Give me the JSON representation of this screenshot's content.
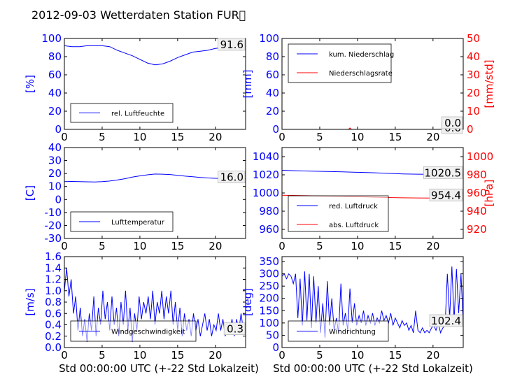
{
  "title": "2012-09-03 Wetterdaten Station FUR\u0000",
  "xlabel": "Std 00:00:00 UTC (+-22 Std Lokalzeit)",
  "colors": {
    "left_axis": "#0000ff",
    "right_axis": "#ff0000",
    "series_blue": "#0000ff",
    "series_red": "#ff0000"
  },
  "chart_data": [
    {
      "type": "line",
      "id": "humidity",
      "ylabel": "[%]",
      "ylim": [
        0,
        100
      ],
      "yticks": [
        0,
        20,
        40,
        60,
        80,
        100
      ],
      "xlim": [
        0,
        24
      ],
      "xticks": [
        0,
        5,
        10,
        15,
        20
      ],
      "legend": "rel. Luftfeuchte",
      "last_value": "91.6",
      "series": [
        {
          "name": "rel. Luftfeuchte",
          "axis": "left",
          "color": "#0000ff",
          "x": [
            0,
            1,
            2,
            3,
            4,
            5,
            6,
            7,
            8,
            9,
            10,
            11,
            12,
            13,
            14,
            15,
            16,
            17,
            18,
            19,
            20,
            21,
            22,
            23,
            24
          ],
          "y": [
            92,
            91,
            91,
            92,
            92,
            92,
            91,
            87,
            84,
            81,
            77,
            73,
            71,
            72,
            75,
            79,
            82,
            85,
            86,
            87,
            89,
            90,
            90,
            91,
            91.6
          ]
        }
      ]
    },
    {
      "type": "line",
      "id": "precipitation",
      "ylabel": "[mm]",
      "ylim": [
        0,
        100
      ],
      "yticks": [
        0,
        20,
        40,
        60,
        80,
        100
      ],
      "ylabel_right": "[mm/std]",
      "ylim_right": [
        0,
        50
      ],
      "yticks_right": [
        0,
        10,
        20,
        30,
        40,
        50
      ],
      "xlim": [
        0,
        24
      ],
      "xticks": [
        0,
        5,
        10,
        15,
        20
      ],
      "legend": [
        "kum. Niederschlag",
        "Niederschlagsrate"
      ],
      "last_value": "0.0",
      "last_value_right": "0.0",
      "series": [
        {
          "name": "kum. Niederschlag",
          "axis": "left",
          "color": "#0000ff",
          "x": [
            0,
            24
          ],
          "y": [
            0,
            0
          ]
        },
        {
          "name": "Niederschlagsrate",
          "axis": "right",
          "color": "#ff0000",
          "x": [
            0,
            8.8,
            9.0,
            9.2,
            24
          ],
          "y": [
            0,
            0,
            0.8,
            0,
            0
          ]
        }
      ]
    },
    {
      "type": "line",
      "id": "temperature",
      "ylabel": "[C]",
      "ylim": [
        -30,
        40
      ],
      "yticks": [
        -30,
        -20,
        -10,
        0,
        10,
        20,
        30,
        40
      ],
      "xlim": [
        0,
        24
      ],
      "xticks": [
        0,
        5,
        10,
        15,
        20
      ],
      "legend": "Lufttemperatur",
      "last_value": "16.0",
      "series": [
        {
          "name": "Lufttemperatur",
          "axis": "left",
          "color": "#0000ff",
          "x": [
            0,
            1,
            2,
            3,
            4,
            5,
            6,
            7,
            8,
            9,
            10,
            11,
            12,
            13,
            14,
            15,
            16,
            17,
            18,
            19,
            20,
            21,
            22,
            23,
            24
          ],
          "y": [
            13.8,
            13.9,
            13.8,
            13.6,
            13.5,
            13.8,
            14.2,
            15.0,
            16.0,
            17.2,
            18.2,
            19.0,
            19.6,
            19.5,
            19.2,
            18.6,
            18.0,
            17.5,
            17.0,
            16.6,
            16.3,
            16.2,
            16.1,
            16.0,
            16.0
          ]
        }
      ]
    },
    {
      "type": "line",
      "id": "pressure",
      "ylim": [
        950,
        1050
      ],
      "yticks": [
        960,
        980,
        1000,
        1020,
        1040
      ],
      "ylabel_right": "[hPa]",
      "ylim_right": [
        910,
        1010
      ],
      "yticks_right": [
        920,
        940,
        960,
        980,
        1000
      ],
      "xlim": [
        0,
        24
      ],
      "xticks": [
        0,
        5,
        10,
        15,
        20
      ],
      "legend": [
        "red. Luftdruck",
        "abs. Luftdruck"
      ],
      "last_value": "1020.5",
      "last_value_right": "954.4",
      "series": [
        {
          "name": "red. Luftdruck",
          "axis": "left",
          "color": "#0000ff",
          "x": [
            0,
            2,
            4,
            6,
            8,
            10,
            12,
            14,
            16,
            18,
            20,
            22,
            24
          ],
          "y": [
            1025,
            1024.5,
            1024,
            1023.6,
            1023.2,
            1022.8,
            1022.3,
            1021.6,
            1021.0,
            1020.7,
            1020.6,
            1020.5,
            1020.5
          ]
        },
        {
          "name": "abs. Luftdruck",
          "axis": "right",
          "color": "#ff0000",
          "x": [
            0,
            2,
            4,
            6,
            8,
            10,
            12,
            14,
            16,
            18,
            20,
            22,
            24
          ],
          "y": [
            957.5,
            957.2,
            956.9,
            956.6,
            956.3,
            955.9,
            955.5,
            955.0,
            954.7,
            954.5,
            954.4,
            954.4,
            954.4
          ]
        }
      ]
    },
    {
      "type": "line",
      "id": "wind_speed",
      "ylabel": "[m/s]",
      "ylim": [
        0,
        1.6
      ],
      "yticks": [
        0.0,
        0.2,
        0.4,
        0.6,
        0.8,
        1.0,
        1.2,
        1.4,
        1.6
      ],
      "xlim": [
        0,
        24
      ],
      "xticks": [
        0,
        5,
        10,
        15,
        20
      ],
      "legend": "Windgeschwindigkeit",
      "last_value": "0.3",
      "series": [
        {
          "name": "Windgeschwindigkeit",
          "axis": "left",
          "color": "#0000ff",
          "x": [
            0,
            0.3,
            0.6,
            0.9,
            1.2,
            1.5,
            1.8,
            2.1,
            2.4,
            2.7,
            3.0,
            3.3,
            3.6,
            3.9,
            4.2,
            4.5,
            4.8,
            5.1,
            5.4,
            5.7,
            6.0,
            6.3,
            6.6,
            6.9,
            7.2,
            7.5,
            7.8,
            8.1,
            8.4,
            8.7,
            9.0,
            9.3,
            9.6,
            9.9,
            10.2,
            10.5,
            10.8,
            11.1,
            11.4,
            11.7,
            12.0,
            12.3,
            12.6,
            12.9,
            13.2,
            13.5,
            13.8,
            14.1,
            14.4,
            14.7,
            15.0,
            15.3,
            15.6,
            15.9,
            16.2,
            16.5,
            16.8,
            17.1,
            17.4,
            17.7,
            18.0,
            18.3,
            18.6,
            18.9,
            19.2,
            19.5,
            19.8,
            20.1,
            20.4,
            20.7,
            21.0,
            21.3,
            21.6,
            21.9,
            22.2,
            22.5,
            22.8,
            23.1,
            23.4,
            23.7,
            24.0
          ],
          "y": [
            1.0,
            1.4,
            0.9,
            1.2,
            0.6,
            0.9,
            0.3,
            0.7,
            0.2,
            0.5,
            0.1,
            0.6,
            0.3,
            0.9,
            0.2,
            0.7,
            0.4,
            1.0,
            0.5,
            0.8,
            0.3,
            0.9,
            0.4,
            0.7,
            0.2,
            0.8,
            0.4,
            1.0,
            0.3,
            0.7,
            0.1,
            0.6,
            0.3,
            0.9,
            0.5,
            0.8,
            0.6,
            0.9,
            0.5,
            1.0,
            0.4,
            0.8,
            0.6,
            1.0,
            0.5,
            0.9,
            0.6,
            1.0,
            0.4,
            0.8,
            0.3,
            0.7,
            0.2,
            0.6,
            0.3,
            0.5,
            0.2,
            0.6,
            0.3,
            0.5,
            0.2,
            0.4,
            0.6,
            0.3,
            0.5,
            0.2,
            0.4,
            0.3,
            0.6,
            0.3,
            0.5,
            0.2,
            0.4,
            0.3,
            0.5,
            0.2,
            0.5,
            0.3,
            0.6,
            0.3,
            0.3
          ]
        }
      ]
    },
    {
      "type": "line",
      "id": "wind_direction",
      "ylabel": "[deg]",
      "ylim": [
        0,
        370
      ],
      "yticks": [
        0,
        50,
        100,
        150,
        200,
        250,
        300,
        350
      ],
      "xlim": [
        0,
        24
      ],
      "xticks": [
        0,
        5,
        10,
        15,
        20
      ],
      "legend": "Windrichtung",
      "last_value": "102.4",
      "series": [
        {
          "name": "Windrichtung",
          "axis": "left",
          "color": "#0000ff",
          "x": [
            0,
            0.3,
            0.6,
            0.9,
            1.2,
            1.5,
            1.8,
            2.1,
            2.4,
            2.7,
            3.0,
            3.3,
            3.6,
            3.9,
            4.2,
            4.5,
            4.8,
            5.1,
            5.4,
            5.7,
            6.0,
            6.3,
            6.6,
            6.9,
            7.2,
            7.5,
            7.8,
            8.1,
            8.4,
            8.7,
            9.0,
            9.3,
            9.6,
            9.9,
            10.2,
            10.5,
            10.8,
            11.1,
            11.4,
            11.7,
            12.0,
            12.3,
            12.6,
            12.9,
            13.2,
            13.5,
            13.8,
            14.1,
            14.4,
            14.7,
            15.0,
            15.3,
            15.6,
            15.9,
            16.2,
            16.5,
            16.8,
            17.1,
            17.4,
            17.7,
            18.0,
            18.3,
            18.6,
            18.9,
            19.2,
            19.5,
            19.8,
            20.1,
            20.4,
            20.7,
            21.0,
            21.3,
            21.6,
            21.9,
            22.2,
            22.5,
            22.8,
            23.1,
            23.4,
            23.7,
            24.0
          ],
          "y": [
            290,
            300,
            280,
            300,
            290,
            260,
            300,
            120,
            280,
            90,
            310,
            110,
            300,
            80,
            290,
            100,
            250,
            60,
            180,
            40,
            270,
            90,
            200,
            70,
            120,
            60,
            260,
            90,
            140,
            70,
            240,
            100,
            180,
            90,
            130,
            100,
            150,
            90,
            130,
            100,
            140,
            90,
            120,
            100,
            150,
            110,
            130,
            100,
            140,
            90,
            120,
            100,
            80,
            110,
            90,
            100,
            70,
            90,
            60,
            150,
            70,
            60,
            80,
            60,
            70,
            60,
            80,
            90,
            70,
            100,
            60,
            80,
            90,
            300,
            120,
            330,
            110,
            320,
            140,
            300,
            102.4
          ]
        }
      ]
    }
  ]
}
